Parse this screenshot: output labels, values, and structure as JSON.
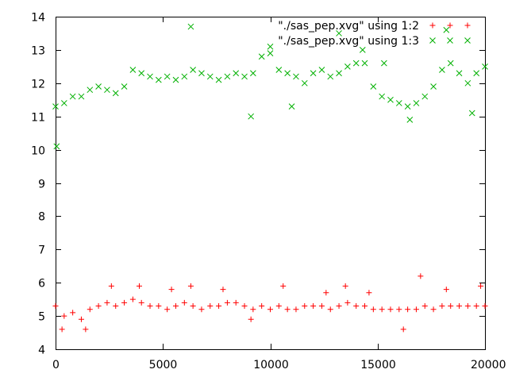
{
  "chart_data": {
    "type": "scatter",
    "title": "",
    "xlabel": "",
    "ylabel": "",
    "xlim": [
      0,
      20000
    ],
    "ylim": [
      4,
      14
    ],
    "xticks": [
      0,
      5000,
      10000,
      15000,
      20000
    ],
    "yticks": [
      4,
      5,
      6,
      7,
      8,
      9,
      10,
      11,
      12,
      13,
      14
    ],
    "grid": false,
    "legend_position": "top-right",
    "series": [
      {
        "name": "\"./sas_pep.xvg\" using 1:2",
        "marker": "plus",
        "color": "#ff0000",
        "points": [
          [
            0,
            5.3
          ],
          [
            400,
            5.0
          ],
          [
            800,
            5.1
          ],
          [
            1200,
            4.9
          ],
          [
            1600,
            5.2
          ],
          [
            2000,
            5.3
          ],
          [
            2400,
            5.4
          ],
          [
            2800,
            5.3
          ],
          [
            3200,
            5.4
          ],
          [
            3600,
            5.5
          ],
          [
            4000,
            5.4
          ],
          [
            4400,
            5.3
          ],
          [
            4800,
            5.3
          ],
          [
            5200,
            5.2
          ],
          [
            5600,
            5.3
          ],
          [
            6000,
            5.4
          ],
          [
            6400,
            5.3
          ],
          [
            6800,
            5.2
          ],
          [
            7200,
            5.3
          ],
          [
            7600,
            5.3
          ],
          [
            8000,
            5.4
          ],
          [
            8400,
            5.4
          ],
          [
            8800,
            5.3
          ],
          [
            9200,
            5.2
          ],
          [
            9600,
            5.3
          ],
          [
            10000,
            5.2
          ],
          [
            10400,
            5.3
          ],
          [
            10800,
            5.2
          ],
          [
            11200,
            5.2
          ],
          [
            11600,
            5.3
          ],
          [
            12000,
            5.3
          ],
          [
            12400,
            5.3
          ],
          [
            12800,
            5.2
          ],
          [
            13200,
            5.3
          ],
          [
            13600,
            5.4
          ],
          [
            14000,
            5.3
          ],
          [
            14400,
            5.3
          ],
          [
            14800,
            5.2
          ],
          [
            15200,
            5.2
          ],
          [
            15600,
            5.2
          ],
          [
            16000,
            5.2
          ],
          [
            16400,
            5.2
          ],
          [
            16800,
            5.2
          ],
          [
            17200,
            5.3
          ],
          [
            17600,
            5.2
          ],
          [
            18000,
            5.3
          ],
          [
            18400,
            5.3
          ],
          [
            18800,
            5.3
          ],
          [
            19200,
            5.3
          ],
          [
            19600,
            5.3
          ],
          [
            20000,
            5.3
          ],
          [
            300,
            4.6
          ],
          [
            1400,
            4.6
          ],
          [
            2600,
            5.9
          ],
          [
            3900,
            5.9
          ],
          [
            5400,
            5.8
          ],
          [
            6300,
            5.9
          ],
          [
            7800,
            5.8
          ],
          [
            9100,
            4.9
          ],
          [
            10600,
            5.9
          ],
          [
            12600,
            5.7
          ],
          [
            13500,
            5.9
          ],
          [
            14600,
            5.7
          ],
          [
            16200,
            4.6
          ],
          [
            17000,
            6.2
          ],
          [
            18200,
            5.8
          ],
          [
            19800,
            5.9
          ]
        ]
      },
      {
        "name": "\"./sas_pep.xvg\" using 1:3",
        "marker": "cross",
        "color": "#00b000",
        "points": [
          [
            0,
            11.3
          ],
          [
            400,
            11.4
          ],
          [
            800,
            11.6
          ],
          [
            1200,
            11.6
          ],
          [
            1600,
            11.8
          ],
          [
            2000,
            11.9
          ],
          [
            2400,
            11.8
          ],
          [
            2800,
            11.7
          ],
          [
            3200,
            11.9
          ],
          [
            3600,
            12.4
          ],
          [
            4000,
            12.3
          ],
          [
            4400,
            12.2
          ],
          [
            4800,
            12.1
          ],
          [
            5200,
            12.2
          ],
          [
            5600,
            12.1
          ],
          [
            6000,
            12.2
          ],
          [
            6400,
            12.4
          ],
          [
            6800,
            12.3
          ],
          [
            7200,
            12.2
          ],
          [
            7600,
            12.1
          ],
          [
            8000,
            12.2
          ],
          [
            8400,
            12.3
          ],
          [
            8800,
            12.2
          ],
          [
            9200,
            12.3
          ],
          [
            9600,
            12.8
          ],
          [
            10000,
            12.9
          ],
          [
            10400,
            12.4
          ],
          [
            10800,
            12.3
          ],
          [
            11200,
            12.2
          ],
          [
            11600,
            12.0
          ],
          [
            12000,
            12.3
          ],
          [
            12400,
            12.4
          ],
          [
            12800,
            12.2
          ],
          [
            13200,
            12.3
          ],
          [
            13600,
            12.5
          ],
          [
            14000,
            12.6
          ],
          [
            14400,
            12.6
          ],
          [
            14800,
            11.9
          ],
          [
            15200,
            11.6
          ],
          [
            15600,
            11.5
          ],
          [
            16000,
            11.4
          ],
          [
            16400,
            11.3
          ],
          [
            16800,
            11.4
          ],
          [
            17200,
            11.6
          ],
          [
            17600,
            11.9
          ],
          [
            18000,
            12.4
          ],
          [
            18400,
            12.6
          ],
          [
            18800,
            12.3
          ],
          [
            19200,
            12.0
          ],
          [
            19600,
            12.3
          ],
          [
            20000,
            12.5
          ],
          [
            50,
            10.1
          ],
          [
            6300,
            13.7
          ],
          [
            9100,
            11.0
          ],
          [
            10000,
            13.1
          ],
          [
            11000,
            11.3
          ],
          [
            13200,
            13.5
          ],
          [
            14300,
            13.0
          ],
          [
            15300,
            12.6
          ],
          [
            16500,
            10.9
          ],
          [
            18200,
            13.6
          ],
          [
            19400,
            11.1
          ]
        ]
      }
    ]
  }
}
